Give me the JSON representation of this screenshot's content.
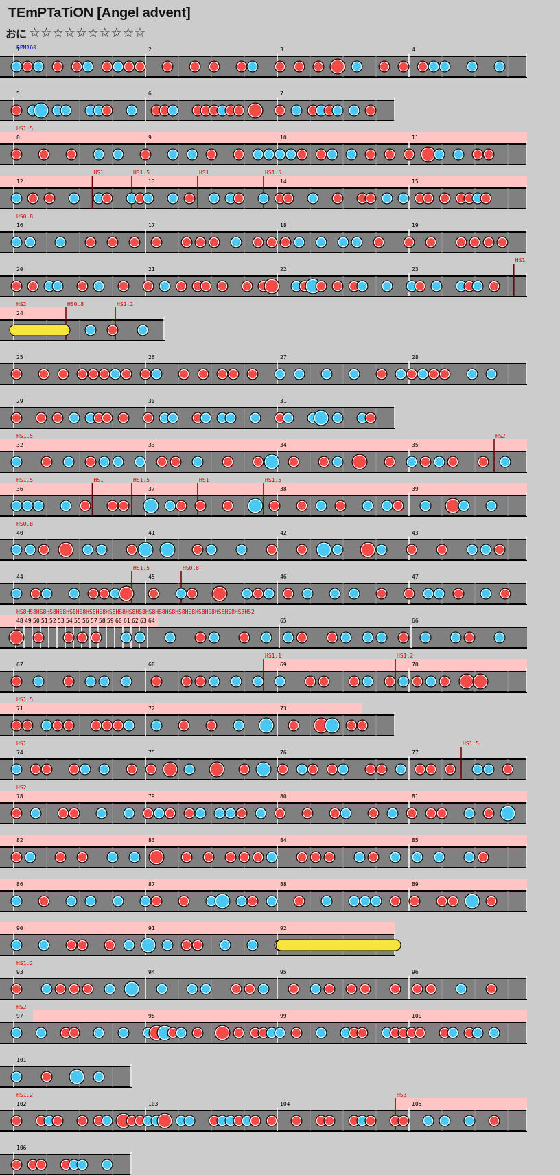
{
  "song": {
    "title": "TEmPTaTiON [Angel advent]",
    "difficulty_icon": "おに",
    "stars": "☆☆☆☆☆☆☆☆☆☆"
  },
  "bpm_label": "BPM160",
  "colors": {
    "background": "#cccccc",
    "lane": "#808080",
    "lane_dark": "#6e6e6e",
    "don": "#f24b48",
    "ka": "#4ac8f4",
    "roll": "#f7e43c",
    "scroll_zone": "#ffc4c4",
    "scroll_text": "#dd0000",
    "bpm_text": "#0000cc"
  },
  "rows": [
    {
      "measures": [
        1,
        2,
        3,
        4
      ],
      "beats": 4
    },
    {
      "measures": [
        5,
        6,
        7
      ],
      "beats": 3
    },
    {
      "measures": [
        8,
        9,
        10,
        11
      ],
      "beats": 4,
      "hs": [
        {
          "t": "HS1.5",
          "b": 0
        }
      ],
      "pink": [
        0,
        4
      ]
    },
    {
      "measures": [
        12,
        13,
        14,
        15
      ],
      "beats": 4,
      "hs": [
        {
          "t": "HS1",
          "b": 0.7
        },
        {
          "t": "HS1.5",
          "b": 1
        },
        {
          "t": "HS1",
          "b": 1.5
        },
        {
          "t": "HS1.5",
          "b": 2
        }
      ],
      "pink": [
        0,
        4
      ]
    },
    {
      "measures": [
        16,
        17,
        18,
        19
      ],
      "beats": 4,
      "hs": [
        {
          "t": "HS0.8",
          "b": 0
        }
      ]
    },
    {
      "measures": [
        20,
        21,
        22,
        23
      ],
      "beats": 4,
      "hs": [
        {
          "t": "HS1",
          "b": 3.9
        }
      ]
    },
    {
      "measures": [
        24
      ],
      "beats": 1.25,
      "hs": [
        {
          "t": "HS2",
          "b": 0
        },
        {
          "t": "HS0.8",
          "b": 0.5
        },
        {
          "t": "HS1.2",
          "b": 0.875
        }
      ],
      "pink": [
        0,
        0.5
      ]
    },
    {
      "measures": [
        25,
        26,
        27,
        28
      ],
      "beats": 4
    },
    {
      "measures": [
        29,
        30,
        31
      ],
      "beats": 3
    },
    {
      "measures": [
        32,
        33,
        34,
        35
      ],
      "beats": 4,
      "hs": [
        {
          "t": "HS1.5",
          "b": 0
        },
        {
          "t": "HS2",
          "b": 3.75
        }
      ],
      "pink": [
        0,
        4
      ]
    },
    {
      "measures": [
        36,
        37,
        38,
        39
      ],
      "beats": 4,
      "hs": [
        {
          "t": "HS1.5",
          "b": 0
        },
        {
          "t": "HS1",
          "b": 0.7
        },
        {
          "t": "HS1.5",
          "b": 1
        },
        {
          "t": "HS1",
          "b": 1.5
        },
        {
          "t": "HS1.5",
          "b": 2
        }
      ],
      "pink": [
        0,
        4
      ]
    },
    {
      "measures": [
        40,
        41,
        42,
        43
      ],
      "beats": 4,
      "hs": [
        {
          "t": "HS0.8",
          "b": 0
        }
      ]
    },
    {
      "measures": [
        44,
        45,
        46,
        47
      ],
      "beats": 4,
      "hs": [
        {
          "t": "HS1.5",
          "b": 1
        },
        {
          "t": "HS0.8",
          "b": 1.375
        }
      ]
    },
    {
      "measures": [
        48,
        49,
        50,
        51,
        52,
        53,
        54,
        55,
        56,
        57,
        58,
        59,
        60,
        61,
        62,
        63,
        64,
        65,
        66
      ],
      "beats": 4,
      "dense": true,
      "hs": [
        {
          "t": "HS8HS8HS8HS8HS8HS8HS8HS8HS8HS8HS8HS8HS8HS8HS8HS8HS8HS8HS8HS8HS8HS8HS8HS2",
          "b": 0
        }
      ],
      "pink": [
        0,
        1.2
      ]
    },
    {
      "measures": [
        67,
        68,
        69,
        70
      ],
      "beats": 4,
      "hs": [
        {
          "t": "HS1.1",
          "b": 2
        },
        {
          "t": "HS1.2",
          "b": 3
        }
      ],
      "pink": [
        2,
        4
      ]
    },
    {
      "measures": [
        71,
        72,
        73
      ],
      "beats": 3,
      "hs": [
        {
          "t": "HS1.5",
          "b": 0
        }
      ],
      "pink": [
        0,
        2.75
      ]
    },
    {
      "measures": [
        74,
        75,
        76,
        77
      ],
      "beats": 4,
      "hs": [
        {
          "t": "HS1",
          "b": 0
        },
        {
          "t": "HS1.5",
          "b": 3.5
        }
      ]
    },
    {
      "measures": [
        78,
        79,
        80,
        81
      ],
      "beats": 4,
      "hs": [
        {
          "t": "HS2",
          "b": 0
        }
      ],
      "pink": [
        0,
        4
      ]
    },
    {
      "measures": [
        82,
        83,
        84,
        85
      ],
      "beats": 4,
      "pink": [
        0,
        4
      ]
    },
    {
      "measures": [
        86,
        87,
        88,
        89
      ],
      "beats": 4,
      "pink": [
        0,
        4
      ]
    },
    {
      "measures": [
        90,
        91,
        92
      ],
      "beats": 3,
      "pink": [
        0,
        3
      ]
    },
    {
      "measures": [
        93,
        94,
        95,
        96
      ],
      "beats": 4,
      "hs": [
        {
          "t": "HS1.2",
          "b": 0
        }
      ]
    },
    {
      "measures": [
        97,
        98,
        99,
        100
      ],
      "beats": 4,
      "hs": [
        {
          "t": "HS2",
          "b": 0
        }
      ],
      "pink": [
        0.25,
        4
      ]
    },
    {
      "measures": [
        101
      ],
      "beats": 1
    },
    {
      "measures": [
        102,
        103,
        104,
        105
      ],
      "beats": 4,
      "hs": [
        {
          "t": "HS1.2",
          "b": 0
        },
        {
          "t": "HS3",
          "b": 3
        }
      ],
      "pink": [
        3,
        4
      ]
    },
    {
      "measures": [
        106
      ],
      "beats": 1
    }
  ]
}
